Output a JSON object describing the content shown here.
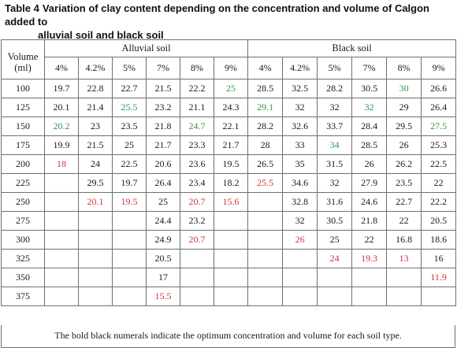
{
  "caption": {
    "label": "Table 4",
    "text_line1": "Variation of clay content depending on the concentration and volume of Calgon added to",
    "text_line2": "alluvial soil and black soil"
  },
  "header": {
    "volume_label_1": "Volume",
    "volume_label_2": "(ml)",
    "group_alluvial": "Alluvial soil",
    "group_black": "Black soil",
    "concentrations": [
      "4%",
      "4.2%",
      "5%",
      "7%",
      "8%",
      "9%"
    ]
  },
  "rows": [
    {
      "volume": "100",
      "cells": [
        {
          "v": "19.7",
          "s": ""
        },
        {
          "v": "22.8",
          "s": ""
        },
        {
          "v": "22.7",
          "s": ""
        },
        {
          "v": "21.5",
          "s": ""
        },
        {
          "v": "22.2",
          "s": ""
        },
        {
          "v": "25",
          "s": "green"
        },
        {
          "v": "28.5",
          "s": ""
        },
        {
          "v": "32.5",
          "s": ""
        },
        {
          "v": "28.2",
          "s": ""
        },
        {
          "v": "30.5",
          "s": ""
        },
        {
          "v": "30",
          "s": "green"
        },
        {
          "v": "26.6",
          "s": ""
        }
      ]
    },
    {
      "volume": "125",
      "cells": [
        {
          "v": "20.1",
          "s": ""
        },
        {
          "v": "21.4",
          "s": ""
        },
        {
          "v": "25.5",
          "s": "green"
        },
        {
          "v": "23.2",
          "s": ""
        },
        {
          "v": "21.1",
          "s": ""
        },
        {
          "v": "24.3",
          "s": ""
        },
        {
          "v": "29.1",
          "s": "green"
        },
        {
          "v": "32",
          "s": ""
        },
        {
          "v": "32",
          "s": ""
        },
        {
          "v": "32",
          "s": "green"
        },
        {
          "v": "29",
          "s": ""
        },
        {
          "v": "26.4",
          "s": ""
        }
      ]
    },
    {
      "volume": "150",
      "cells": [
        {
          "v": "20.2",
          "s": "green"
        },
        {
          "v": "23",
          "s": ""
        },
        {
          "v": "23.5",
          "s": ""
        },
        {
          "v": "21.8",
          "s": ""
        },
        {
          "v": "24.7",
          "s": "green"
        },
        {
          "v": "22.1",
          "s": ""
        },
        {
          "v": "28.2",
          "s": ""
        },
        {
          "v": "32.6",
          "s": ""
        },
        {
          "v": "33.7",
          "s": ""
        },
        {
          "v": "28.4",
          "s": ""
        },
        {
          "v": "29.5",
          "s": ""
        },
        {
          "v": "27.5",
          "s": "green"
        }
      ]
    },
    {
      "volume": "175",
      "cells": [
        {
          "v": "19.9",
          "s": ""
        },
        {
          "v": "21.5",
          "s": ""
        },
        {
          "v": "25",
          "s": ""
        },
        {
          "v": "21.7",
          "s": ""
        },
        {
          "v": "23.3",
          "s": ""
        },
        {
          "v": "21.7",
          "s": ""
        },
        {
          "v": "28",
          "s": ""
        },
        {
          "v": "33",
          "s": ""
        },
        {
          "v": "34",
          "s": "green"
        },
        {
          "v": "28.5",
          "s": ""
        },
        {
          "v": "26",
          "s": ""
        },
        {
          "v": "25.3",
          "s": ""
        }
      ]
    },
    {
      "volume": "200",
      "cells": [
        {
          "v": "18",
          "s": "red"
        },
        {
          "v": "24",
          "s": ""
        },
        {
          "v": "22.5",
          "s": ""
        },
        {
          "v": "20.6",
          "s": ""
        },
        {
          "v": "23.6",
          "s": ""
        },
        {
          "v": "19.5",
          "s": ""
        },
        {
          "v": "26.5",
          "s": ""
        },
        {
          "v": "35",
          "s": "black"
        },
        {
          "v": "31.5",
          "s": ""
        },
        {
          "v": "26",
          "s": ""
        },
        {
          "v": "26.2",
          "s": ""
        },
        {
          "v": "22.5",
          "s": ""
        }
      ]
    },
    {
      "volume": "225",
      "cells": [
        {
          "v": "",
          "s": ""
        },
        {
          "v": "29.5",
          "s": "black"
        },
        {
          "v": "19.7",
          "s": ""
        },
        {
          "v": "26.4",
          "s": ""
        },
        {
          "v": "23.4",
          "s": ""
        },
        {
          "v": "18.2",
          "s": ""
        },
        {
          "v": "25.5",
          "s": "red"
        },
        {
          "v": "34.6",
          "s": ""
        },
        {
          "v": "32",
          "s": ""
        },
        {
          "v": "27.9",
          "s": ""
        },
        {
          "v": "23.5",
          "s": ""
        },
        {
          "v": "22",
          "s": ""
        }
      ]
    },
    {
      "volume": "250",
      "cells": [
        {
          "v": "",
          "s": ""
        },
        {
          "v": "20.1",
          "s": "red"
        },
        {
          "v": "19.5",
          "s": "red"
        },
        {
          "v": "25",
          "s": ""
        },
        {
          "v": "20.7",
          "s": "red"
        },
        {
          "v": "15.6",
          "s": "red"
        },
        {
          "v": "",
          "s": ""
        },
        {
          "v": "32.8",
          "s": ""
        },
        {
          "v": "31.6",
          "s": ""
        },
        {
          "v": "24.6",
          "s": ""
        },
        {
          "v": "22.7",
          "s": ""
        },
        {
          "v": "22.2",
          "s": ""
        }
      ]
    },
    {
      "volume": "275",
      "cells": [
        {
          "v": "",
          "s": ""
        },
        {
          "v": "",
          "s": ""
        },
        {
          "v": "",
          "s": ""
        },
        {
          "v": "24.4",
          "s": ""
        },
        {
          "v": "23.2",
          "s": ""
        },
        {
          "v": "",
          "s": ""
        },
        {
          "v": "",
          "s": ""
        },
        {
          "v": "32",
          "s": ""
        },
        {
          "v": "30.5",
          "s": ""
        },
        {
          "v": "21.8",
          "s": ""
        },
        {
          "v": "22",
          "s": ""
        },
        {
          "v": "20.5",
          "s": ""
        }
      ]
    },
    {
      "volume": "300",
      "cells": [
        {
          "v": "",
          "s": ""
        },
        {
          "v": "",
          "s": ""
        },
        {
          "v": "",
          "s": ""
        },
        {
          "v": "24.9",
          "s": ""
        },
        {
          "v": "20.7",
          "s": "red"
        },
        {
          "v": "",
          "s": ""
        },
        {
          "v": "",
          "s": ""
        },
        {
          "v": "26",
          "s": "red"
        },
        {
          "v": "25",
          "s": ""
        },
        {
          "v": "22",
          "s": ""
        },
        {
          "v": "16.8",
          "s": ""
        },
        {
          "v": "18.6",
          "s": ""
        }
      ]
    },
    {
      "volume": "325",
      "cells": [
        {
          "v": "",
          "s": ""
        },
        {
          "v": "",
          "s": ""
        },
        {
          "v": "",
          "s": ""
        },
        {
          "v": "20.5",
          "s": ""
        },
        {
          "v": "",
          "s": ""
        },
        {
          "v": "",
          "s": ""
        },
        {
          "v": "",
          "s": ""
        },
        {
          "v": "",
          "s": ""
        },
        {
          "v": "24",
          "s": "red"
        },
        {
          "v": "19.3",
          "s": "red"
        },
        {
          "v": "13",
          "s": "red"
        },
        {
          "v": "16",
          "s": ""
        }
      ]
    },
    {
      "volume": "350",
      "cells": [
        {
          "v": "",
          "s": ""
        },
        {
          "v": "",
          "s": ""
        },
        {
          "v": "",
          "s": ""
        },
        {
          "v": "17",
          "s": ""
        },
        {
          "v": "",
          "s": ""
        },
        {
          "v": "",
          "s": ""
        },
        {
          "v": "",
          "s": ""
        },
        {
          "v": "",
          "s": ""
        },
        {
          "v": "",
          "s": ""
        },
        {
          "v": "",
          "s": ""
        },
        {
          "v": "",
          "s": ""
        },
        {
          "v": "11.9",
          "s": "red"
        }
      ]
    },
    {
      "volume": "375",
      "cells": [
        {
          "v": "",
          "s": ""
        },
        {
          "v": "",
          "s": ""
        },
        {
          "v": "",
          "s": ""
        },
        {
          "v": "15.5",
          "s": "red"
        },
        {
          "v": "",
          "s": ""
        },
        {
          "v": "",
          "s": ""
        },
        {
          "v": "",
          "s": ""
        },
        {
          "v": "",
          "s": ""
        },
        {
          "v": "",
          "s": ""
        },
        {
          "v": "",
          "s": ""
        },
        {
          "v": "",
          "s": ""
        },
        {
          "v": "",
          "s": ""
        }
      ]
    }
  ],
  "footnote": "The bold black numerals indicate the optimum concentration and volume for each soil type.",
  "colors": {
    "green_highlight": "#2f9a4c",
    "red_highlight": "#d0343c",
    "optimum_black": "#111111",
    "border": "#6f6f6f"
  }
}
